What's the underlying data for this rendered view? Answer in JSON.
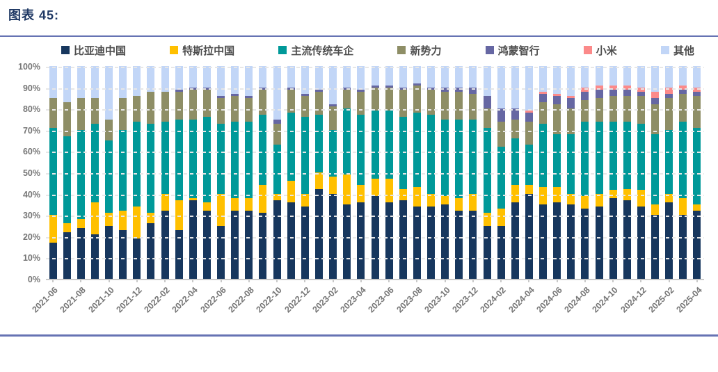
{
  "page": {
    "title": "图表  45:"
  },
  "colors": {
    "title_text": "#1F3864",
    "divider": "#6673B3",
    "axis_text": "#767676",
    "legend_text": "#4D4D4D",
    "gridline": "#E7E7E7",
    "axis_line": "#C9C9C9",
    "background": "#FFFFFF"
  },
  "chart_data": {
    "type": "bar",
    "stacked": true,
    "stack_total_percent": 100,
    "unit": "%",
    "grid": "dashed horizontal, on top of bars",
    "legend_position": "top",
    "y_axis": {
      "min": 0,
      "max": 100,
      "step": 10,
      "tick_labels": [
        "0%",
        "10%",
        "20%",
        "30%",
        "40%",
        "50%",
        "60%",
        "70%",
        "80%",
        "90%",
        "100%"
      ]
    },
    "categories": [
      "2021-06",
      "2021-07",
      "2021-08",
      "2021-09",
      "2021-10",
      "2021-11",
      "2021-12",
      "2022-01",
      "2022-02",
      "2022-03",
      "2022-04",
      "2022-05",
      "2022-06",
      "2022-07",
      "2022-08",
      "2022-09",
      "2022-10",
      "2022-11",
      "2022-12",
      "2023-01",
      "2023-02",
      "2023-03",
      "2023-04",
      "2023-05",
      "2023-06",
      "2023-07",
      "2023-08",
      "2023-09",
      "2023-10",
      "2023-11",
      "2023-12",
      "2024-01",
      "2024-02",
      "2024-03",
      "2024-04",
      "2024-05",
      "2024-06",
      "2024-07",
      "2024-08",
      "2024-09",
      "2024-10",
      "2024-11",
      "2024-12",
      "2025-01",
      "2025-02",
      "2025-03",
      "2025-04"
    ],
    "x_axis_tick_labels": [
      "2021-06",
      "2021-08",
      "2021-10",
      "2021-12",
      "2022-02",
      "2022-04",
      "2022-06",
      "2022-08",
      "2022-10",
      "2022-12",
      "2023-02",
      "2023-04",
      "2023-06",
      "2023-08",
      "2023-10",
      "2023-12",
      "2024-02",
      "2024-04",
      "2024-06",
      "2024-08",
      "2024-10",
      "2024-12",
      "2025-02",
      "2025-04"
    ],
    "series": [
      {
        "key": "byd",
        "name": "比亚迪中国",
        "color": "#17375E",
        "values": [
          17,
          22,
          24,
          21,
          25,
          23,
          19,
          26,
          32,
          23,
          37,
          32,
          25,
          32,
          32,
          31,
          37,
          36,
          34,
          42,
          40,
          35,
          36,
          39,
          36,
          37,
          34,
          34,
          35,
          32,
          32,
          25,
          25,
          36,
          40,
          35,
          36,
          35,
          33,
          34,
          38,
          37,
          34,
          30,
          36,
          30,
          32
        ]
      },
      {
        "key": "tesla",
        "name": "特斯拉中国",
        "color": "#FFC000",
        "values": [
          13,
          4,
          4,
          15,
          6,
          9,
          15,
          5,
          8,
          14,
          1,
          4,
          15,
          6,
          6,
          13,
          3,
          10,
          6,
          8,
          8,
          14,
          8,
          8,
          11,
          5,
          9,
          6,
          4,
          6,
          8,
          6,
          8,
          8,
          4,
          8,
          7,
          5,
          6,
          6,
          4,
          5,
          8,
          5,
          4,
          8,
          3
        ]
      },
      {
        "key": "traditional-oems",
        "name": "主流传统车企",
        "color": "#009999",
        "values": [
          41,
          41,
          42,
          37,
          34,
          38,
          40,
          42,
          34,
          38,
          37,
          40,
          33,
          36,
          36,
          33,
          23,
          32,
          36,
          27,
          22,
          31,
          33,
          32,
          32,
          34,
          35,
          37,
          36,
          37,
          35,
          40,
          29,
          22,
          19,
          30,
          25,
          28,
          35,
          34,
          32,
          32,
          31,
          33,
          30,
          36,
          36
        ]
      },
      {
        "key": "new-forces",
        "name": "新势力",
        "color": "#8E8E66",
        "values": [
          14,
          16,
          15,
          12,
          10,
          15,
          12,
          15,
          14,
          13,
          14,
          13,
          12,
          12,
          11,
          12,
          10,
          11,
          10,
          11,
          11,
          9,
          11,
          11,
          11,
          13,
          13,
          12,
          13,
          13,
          12,
          9,
          12,
          9,
          11,
          10,
          14,
          12,
          10,
          11,
          12,
          12,
          13,
          14,
          15,
          13,
          15
        ]
      },
      {
        "key": "harmony",
        "name": "鸿蒙智行",
        "color": "#6667A3",
        "values": [
          0,
          0,
          0,
          0,
          0,
          0,
          0,
          0,
          0,
          1,
          1,
          1,
          1,
          1,
          1,
          1,
          2,
          1,
          1,
          1,
          1,
          1,
          1,
          1,
          1,
          1,
          1,
          1,
          2,
          2,
          3,
          6,
          6,
          5,
          4,
          4,
          4,
          5,
          4,
          4,
          3,
          3,
          2,
          3,
          2,
          2,
          2
        ]
      },
      {
        "key": "xiaomi",
        "name": "小米",
        "color": "#FB8A8A",
        "values": [
          0,
          0,
          0,
          0,
          0,
          0,
          0,
          0,
          0,
          0,
          0,
          0,
          0,
          0,
          0,
          0,
          0,
          0,
          0,
          0,
          0,
          0,
          0,
          0,
          0,
          0,
          0,
          0,
          0,
          0,
          0,
          0,
          0,
          0,
          1,
          1,
          1,
          1,
          2,
          2,
          2,
          2,
          2,
          3,
          3,
          2,
          2
        ]
      },
      {
        "key": "other",
        "name": "其他",
        "color": "#C2D6F7",
        "values": [
          15,
          17,
          15,
          15,
          25,
          15,
          14,
          12,
          12,
          11,
          10,
          10,
          14,
          13,
          14,
          10,
          25,
          10,
          13,
          11,
          18,
          10,
          11,
          9,
          9,
          10,
          8,
          10,
          10,
          10,
          10,
          14,
          20,
          20,
          21,
          12,
          13,
          14,
          10,
          9,
          9,
          9,
          10,
          12,
          10,
          9,
          10
        ]
      }
    ]
  }
}
